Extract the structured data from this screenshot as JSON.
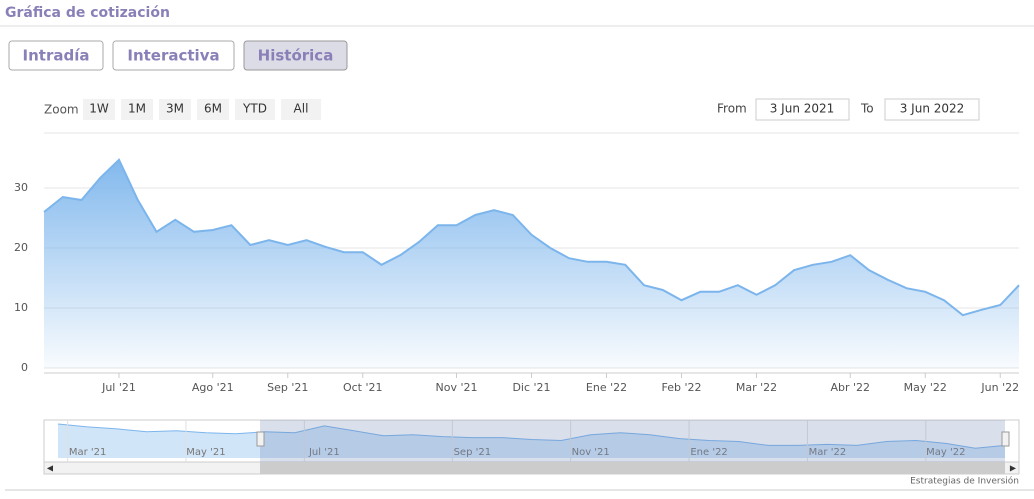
{
  "ui": {
    "header": "Gráfica de cotización",
    "tabs": [
      "Intradía",
      "Interactiva",
      "Histórica"
    ],
    "active_tab": 2,
    "zoom_label": "Zoom",
    "zoom_buttons": [
      "1W",
      "1M",
      "3M",
      "6M",
      "YTD",
      "All"
    ],
    "from_label": "From",
    "from_value": "3 Jun 2021",
    "to_label": "To",
    "to_value": "3 Jun 2022",
    "credit": "Estrategias de Inversión"
  },
  "chart_data": {
    "type": "area",
    "color": "#7cb5ec",
    "grid": true,
    "categories": [
      null,
      null,
      null,
      null,
      "Jul '21",
      null,
      null,
      null,
      null,
      "Ago '21",
      null,
      null,
      null,
      "Sep '21",
      null,
      null,
      null,
      "Oct '21",
      null,
      null,
      null,
      null,
      "Nov '21",
      null,
      null,
      null,
      "Dic '21",
      null,
      null,
      null,
      "Ene '22",
      null,
      null,
      null,
      "Feb '22",
      null,
      null,
      null,
      "Mar '22",
      null,
      null,
      null,
      null,
      "Abr '22",
      null,
      null,
      null,
      "May '22",
      null,
      null,
      null,
      "Jun '22",
      null
    ],
    "values": [
      26,
      28.5,
      28,
      31.7,
      34.7,
      28,
      22.7,
      24.7,
      22.7,
      23,
      23.8,
      20.5,
      21.3,
      20.5,
      21.3,
      20.2,
      19.3,
      19.3,
      17.2,
      18.8,
      21,
      23.8,
      23.8,
      25.5,
      26.3,
      25.5,
      22.2,
      20,
      18.3,
      17.7,
      17.7,
      17.2,
      13.8,
      13,
      11.3,
      12.7,
      12.7,
      13.8,
      12.2,
      13.8,
      16.3,
      17.2,
      17.7,
      18.8,
      16.3,
      14.7,
      13.3,
      12.7,
      11.3,
      8.8,
      9.7,
      10.5,
      13.8
    ],
    "ylim": [
      0,
      40
    ],
    "yticks": [
      0,
      10,
      20,
      30
    ],
    "navigator": {
      "categories": [
        null,
        "Mar '21",
        null,
        null,
        null,
        "May '21",
        null,
        null,
        null,
        "Jul '21",
        null,
        null,
        null,
        null,
        "Sep '21",
        null,
        null,
        null,
        "Nov '21",
        null,
        null,
        null,
        "Ene '22",
        null,
        null,
        null,
        "Mar '22",
        null,
        null,
        null,
        "May '22",
        null,
        null
      ],
      "values": [
        35,
        32,
        30,
        27,
        28,
        26,
        25,
        27,
        26,
        33,
        28,
        23,
        24,
        22,
        21,
        21,
        19,
        18,
        24,
        26,
        24,
        20,
        18,
        17,
        13,
        13,
        14,
        13,
        17,
        18,
        15,
        10,
        13
      ]
    }
  }
}
